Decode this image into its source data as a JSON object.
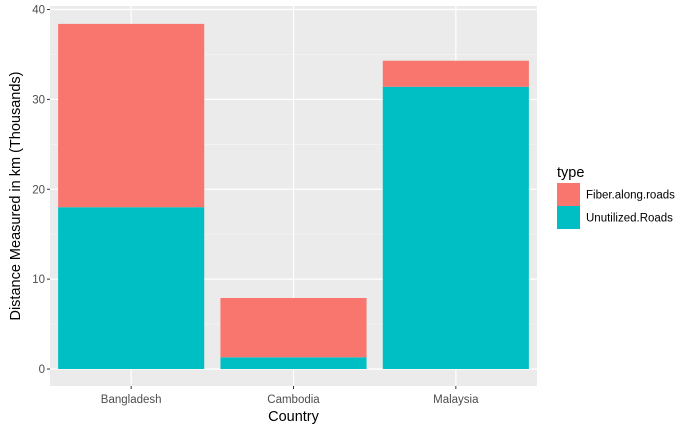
{
  "chart_data": {
    "type": "bar",
    "stacked": true,
    "title": "",
    "xlabel": "Country",
    "ylabel": "Distance Measured in km (Thousands)",
    "categories": [
      "Bangladesh",
      "Cambodia",
      "Malaysia"
    ],
    "series": [
      {
        "name": "Unutilized.Roads",
        "values": [
          18.0,
          1.3,
          31.4
        ],
        "color": "#00BFC4"
      },
      {
        "name": "Fiber.along.roads",
        "values": [
          20.4,
          6.6,
          2.9
        ],
        "color": "#F8766D"
      }
    ],
    "ylim": [
      0,
      40
    ],
    "yticks": [
      0,
      10,
      20,
      30,
      40
    ],
    "grid": true,
    "legend": {
      "title": "type",
      "position": "right",
      "items": [
        "Fiber.along.roads",
        "Unutilized.Roads"
      ]
    },
    "colors": {
      "panel_background": "#EBEBEB",
      "grid_major": "#FFFFFF",
      "grid_minor": "#F5F5F5"
    }
  }
}
